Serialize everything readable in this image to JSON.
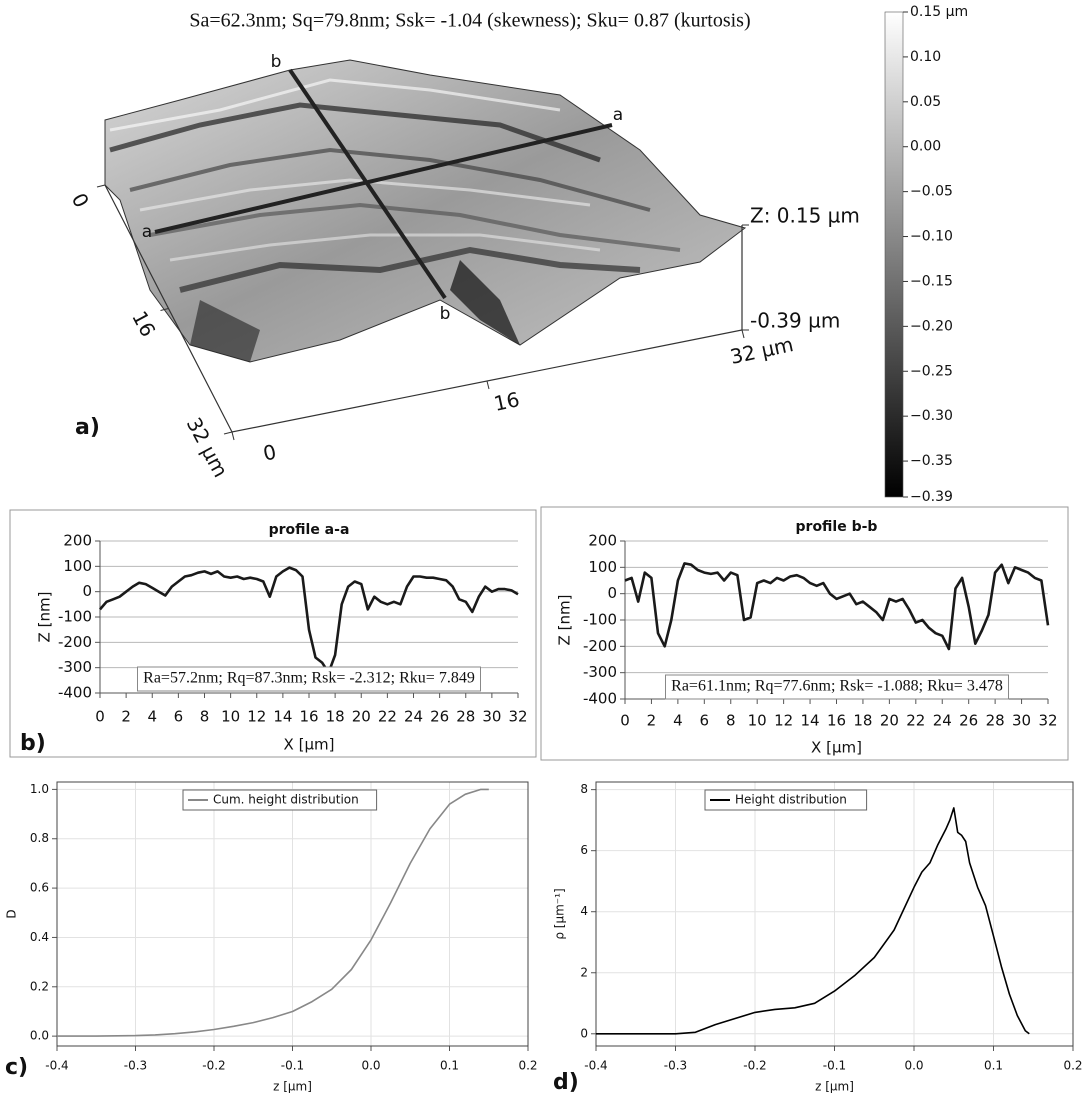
{
  "chart_data": [
    {
      "type": "surface",
      "title": "Sa=62.3nm;  Sq=79.8nm;  Ssk= -1.04 (skewness);  Sku= 0.87 (kurtosis)",
      "panel_label": "a)",
      "sections": [
        "a",
        "b"
      ],
      "xlim": [
        0,
        32
      ],
      "xticks": [
        0,
        16,
        {
          "value": 32,
          "label": "32 µm"
        }
      ],
      "ylim": [
        0,
        32
      ],
      "yticks": [
        0,
        16,
        {
          "value": 32,
          "label": "32 µm"
        }
      ],
      "zlim": [
        -0.39,
        0.15
      ],
      "zticks": [
        {
          "value": 0.15,
          "label": "Z: 0.15 µm"
        },
        {
          "value": -0.39,
          "label": "-0.39 µm"
        }
      ],
      "colorbar_lim": [
        -0.39,
        0.15
      ],
      "colorbar_ticks": [
        {
          "value": 0.15,
          "label": "0.15 µm"
        },
        {
          "value": 0.1,
          "label": "0.10"
        },
        {
          "value": 0.05,
          "label": "0.05"
        },
        {
          "value": 0,
          "label": "0.00"
        },
        {
          "value": -0.05,
          "label": "−0.05"
        },
        {
          "value": -0.1,
          "label": "−0.10"
        },
        {
          "value": -0.15,
          "label": "−0.15"
        },
        {
          "value": -0.2,
          "label": "−0.20"
        },
        {
          "value": -0.25,
          "label": "−0.25"
        },
        {
          "value": -0.3,
          "label": "−0.30"
        },
        {
          "value": -0.35,
          "label": "−0.35"
        },
        {
          "value": -0.39,
          "label": "−0.39"
        }
      ],
      "colormap": [
        "#000000",
        "#ffffff"
      ]
    },
    {
      "type": "line",
      "title": "profile a-a",
      "panel_label": "b)",
      "xlabel": "X [µm]",
      "ylabel": "Z [nm]",
      "stats": "Ra=57.2nm; Rq=87.3nm; Rsk= -2.312; Rku= 7.849",
      "x": [
        0,
        0.5,
        1,
        1.5,
        2,
        2.5,
        3,
        3.5,
        4,
        4.5,
        5,
        5.5,
        6,
        6.5,
        7,
        7.5,
        8,
        8.5,
        9,
        9.5,
        10,
        10.5,
        11,
        11.5,
        12,
        12.5,
        13,
        13.5,
        14,
        14.5,
        15,
        15.5,
        16,
        16.5,
        17,
        17.5,
        18,
        18.5,
        19,
        19.5,
        20,
        20.5,
        21,
        21.5,
        22,
        22.5,
        23,
        23.5,
        24,
        24.5,
        25,
        25.5,
        26,
        26.5,
        27,
        27.5,
        28,
        28.5,
        29,
        29.5,
        30,
        30.5,
        31,
        31.5,
        32
      ],
      "values": [
        -70,
        -40,
        -30,
        -20,
        0,
        20,
        35,
        30,
        15,
        0,
        -15,
        20,
        40,
        60,
        65,
        75,
        80,
        70,
        80,
        60,
        55,
        60,
        50,
        55,
        50,
        40,
        -20,
        60,
        80,
        95,
        85,
        60,
        -150,
        -260,
        -280,
        -320,
        -250,
        -50,
        20,
        40,
        30,
        -70,
        -20,
        -40,
        -50,
        -40,
        -50,
        20,
        60,
        60,
        55,
        55,
        50,
        45,
        20,
        -30,
        -40,
        -80,
        -20,
        20,
        0,
        10,
        10,
        5,
        -10
      ],
      "color": "#1a1a1a",
      "xlim": [
        0,
        32
      ],
      "xticks": [
        0,
        2,
        4,
        6,
        8,
        10,
        12,
        14,
        16,
        18,
        20,
        22,
        24,
        26,
        28,
        30,
        32
      ],
      "ylim": [
        -400,
        200
      ],
      "yticks": [
        -400,
        -300,
        -200,
        -100,
        0,
        100,
        200
      ],
      "grid": "y"
    },
    {
      "type": "line",
      "title": "profile b-b",
      "xlabel": "X [µm]",
      "ylabel": "Z [nm]",
      "stats": "Ra=61.1nm; Rq=77.6nm; Rsk= -1.088; Rku= 3.478",
      "x": [
        0,
        0.5,
        1,
        1.5,
        2,
        2.5,
        3,
        3.5,
        4,
        4.5,
        5,
        5.5,
        6,
        6.5,
        7,
        7.5,
        8,
        8.5,
        9,
        9.5,
        10,
        10.5,
        11,
        11.5,
        12,
        12.5,
        13,
        13.5,
        14,
        14.5,
        15,
        15.5,
        16,
        16.5,
        17,
        17.5,
        18,
        18.5,
        19,
        19.5,
        20,
        20.5,
        21,
        21.5,
        22,
        22.5,
        23,
        23.5,
        24,
        24.5,
        25,
        25.5,
        26,
        26.5,
        27,
        27.5,
        28,
        28.5,
        29,
        29.5,
        30,
        30.5,
        31,
        31.5,
        32
      ],
      "values": [
        50,
        60,
        -30,
        80,
        60,
        -150,
        -200,
        -100,
        50,
        115,
        110,
        90,
        80,
        75,
        80,
        50,
        80,
        70,
        -100,
        -90,
        40,
        50,
        40,
        60,
        50,
        65,
        70,
        60,
        40,
        30,
        40,
        0,
        -20,
        -10,
        0,
        -40,
        -30,
        -50,
        -70,
        -100,
        -20,
        -30,
        -20,
        -60,
        -110,
        -100,
        -130,
        -150,
        -160,
        -210,
        20,
        60,
        -50,
        -190,
        -140,
        -80,
        80,
        110,
        40,
        100,
        90,
        80,
        60,
        50,
        -120
      ],
      "color": "#1a1a1a",
      "xlim": [
        0,
        32
      ],
      "xticks": [
        0,
        2,
        4,
        6,
        8,
        10,
        12,
        14,
        16,
        18,
        20,
        22,
        24,
        26,
        28,
        30,
        32
      ],
      "ylim": [
        -400,
        200
      ],
      "yticks": [
        -400,
        -300,
        -200,
        -100,
        0,
        100,
        200
      ],
      "grid": "y"
    },
    {
      "type": "line",
      "panel_label": "c)",
      "xlabel": "z [µm]",
      "ylabel": "D",
      "x": [
        -0.4,
        -0.35,
        -0.3,
        -0.275,
        -0.25,
        -0.225,
        -0.2,
        -0.175,
        -0.15,
        -0.125,
        -0.1,
        -0.075,
        -0.05,
        -0.025,
        0,
        0.025,
        0.05,
        0.075,
        0.1,
        0.12,
        0.14,
        0.15
      ],
      "series": [
        {
          "name": "Cum. height distribution",
          "color": "#888888",
          "values": [
            0,
            0,
            0.002,
            0.005,
            0.01,
            0.017,
            0.027,
            0.04,
            0.055,
            0.075,
            0.1,
            0.14,
            0.19,
            0.27,
            0.39,
            0.54,
            0.7,
            0.84,
            0.94,
            0.98,
            1.0,
            1.0
          ]
        }
      ],
      "xlim": [
        -0.4,
        0.2
      ],
      "xticks": [
        -0.4,
        -0.3,
        -0.2,
        -0.1,
        {
          "value": 0,
          "label": "0.0"
        },
        0.1,
        0.2
      ],
      "ylim": [
        -0.04,
        1.03
      ],
      "yticks": [
        {
          "value": 0,
          "label": "0.0"
        },
        0.2,
        0.4,
        0.6,
        0.8,
        {
          "value": 1,
          "label": "1.0"
        }
      ],
      "grid": "both"
    },
    {
      "type": "line",
      "panel_label": "d)",
      "xlabel": "z [µm]",
      "ylabel": "ρ [µm⁻¹]",
      "x": [
        -0.4,
        -0.35,
        -0.3,
        -0.275,
        -0.25,
        -0.225,
        -0.2,
        -0.175,
        -0.15,
        -0.125,
        -0.1,
        -0.075,
        -0.05,
        -0.025,
        0,
        0.01,
        0.02,
        0.03,
        0.04,
        0.045,
        0.05,
        0.055,
        0.06,
        0.065,
        0.07,
        0.08,
        0.09,
        0.1,
        0.11,
        0.12,
        0.13,
        0.14,
        0.145
      ],
      "series": [
        {
          "name": "Height distribution",
          "color": "#000000",
          "values": [
            0,
            0,
            0,
            0.05,
            0.3,
            0.5,
            0.7,
            0.8,
            0.85,
            1.0,
            1.4,
            1.9,
            2.5,
            3.4,
            4.8,
            5.3,
            5.6,
            6.2,
            6.7,
            7.0,
            7.4,
            6.6,
            6.5,
            6.3,
            5.6,
            4.8,
            4.2,
            3.2,
            2.2,
            1.3,
            0.6,
            0.1,
            0
          ]
        }
      ],
      "xlim": [
        -0.4,
        0.2
      ],
      "xticks": [
        -0.4,
        -0.3,
        -0.2,
        -0.1,
        {
          "value": 0,
          "label": "0.0"
        },
        0.1,
        0.2
      ],
      "ylim": [
        -0.4,
        8.25
      ],
      "yticks": [
        0,
        2,
        4,
        6,
        8
      ],
      "grid": "both"
    }
  ]
}
